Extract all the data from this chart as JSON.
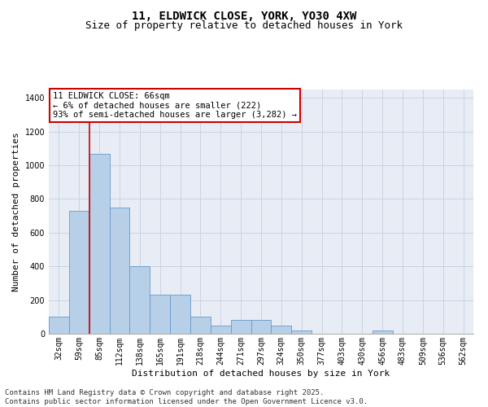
{
  "title1": "11, ELDWICK CLOSE, YORK, YO30 4XW",
  "title2": "Size of property relative to detached houses in York",
  "xlabel": "Distribution of detached houses by size in York",
  "ylabel": "Number of detached properties",
  "categories": [
    "32sqm",
    "59sqm",
    "85sqm",
    "112sqm",
    "138sqm",
    "165sqm",
    "191sqm",
    "218sqm",
    "244sqm",
    "271sqm",
    "297sqm",
    "324sqm",
    "350sqm",
    "377sqm",
    "403sqm",
    "430sqm",
    "456sqm",
    "483sqm",
    "509sqm",
    "536sqm",
    "562sqm"
  ],
  "values": [
    100,
    730,
    1070,
    750,
    400,
    230,
    230,
    100,
    50,
    80,
    80,
    50,
    20,
    0,
    0,
    0,
    20,
    0,
    0,
    0,
    0
  ],
  "bar_color": "#b8cfe8",
  "bar_edge_color": "#6699cc",
  "vline_color": "#cc0000",
  "vline_x_index": 1.5,
  "annotation_text": "11 ELDWICK CLOSE: 66sqm\n← 6% of detached houses are smaller (222)\n93% of semi-detached houses are larger (3,282) →",
  "annotation_box_color": "#cc0000",
  "annotation_bg": "white",
  "ylim": [
    0,
    1450
  ],
  "yticks": [
    0,
    200,
    400,
    600,
    800,
    1000,
    1200,
    1400
  ],
  "grid_color": "#c8d4e3",
  "bg_color": "#e8edf5",
  "footer": "Contains HM Land Registry data © Crown copyright and database right 2025.\nContains public sector information licensed under the Open Government Licence v3.0.",
  "title_fontsize": 10,
  "subtitle_fontsize": 9,
  "axis_label_fontsize": 8,
  "tick_fontsize": 7,
  "footer_fontsize": 6.5,
  "ann_fontsize": 7.5
}
